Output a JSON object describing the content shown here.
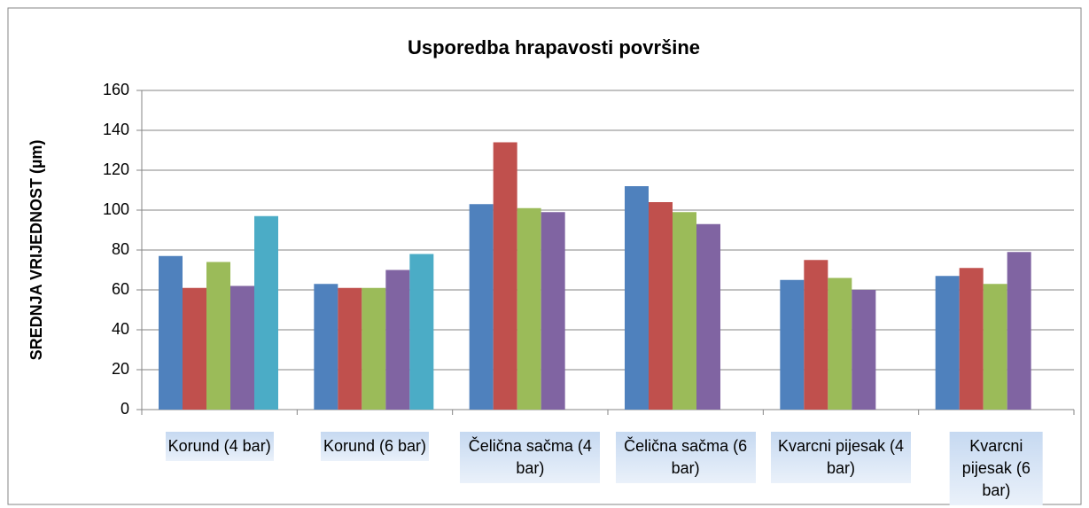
{
  "chart_data": {
    "type": "bar",
    "title": "Usporedba hrapavosti površine",
    "ylabel": "SREDNJA VRIJEDNOST (µm)",
    "categories": [
      "Korund (4 bar)",
      "Korund (6 bar)",
      "Čelična sačma (4 bar)",
      "Čelična sačma (6 bar)",
      "Kvarcni pijesak (4 bar)",
      "Kvarcni pijesak (6 bar)"
    ],
    "series": [
      {
        "color": "#4f81bd",
        "values": [
          77,
          63,
          103,
          112,
          65,
          67
        ]
      },
      {
        "color": "#c0504d",
        "values": [
          61,
          61,
          134,
          104,
          75,
          71
        ]
      },
      {
        "color": "#9bbb59",
        "values": [
          74,
          61,
          101,
          99,
          66,
          63
        ]
      },
      {
        "color": "#8064a2",
        "values": [
          62,
          70,
          99,
          93,
          60,
          79
        ]
      },
      {
        "color": "#4bacc6",
        "values": [
          97,
          78,
          null,
          null,
          null,
          null
        ]
      }
    ],
    "ylim": [
      0,
      160
    ],
    "yticks": [
      0,
      20,
      40,
      60,
      80,
      100,
      120,
      140,
      160
    ],
    "grid": true
  }
}
